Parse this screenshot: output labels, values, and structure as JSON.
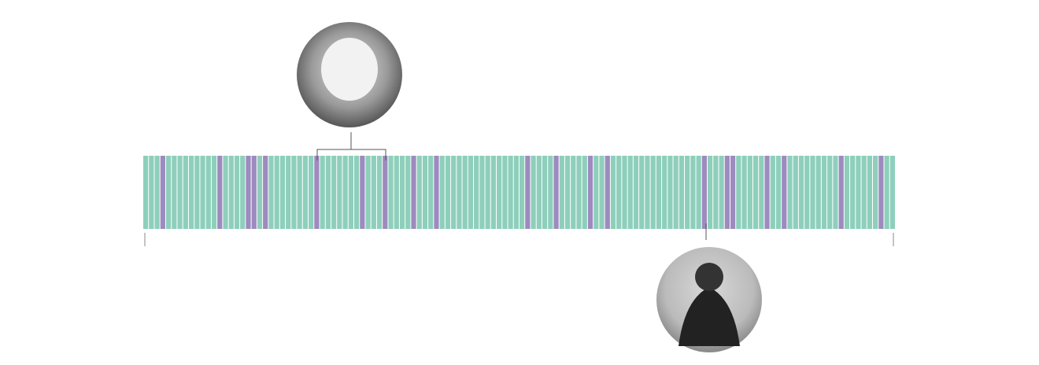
{
  "chart_data": {
    "type": "strip",
    "values": [
      0,
      0,
      0,
      1,
      0,
      0,
      0,
      0,
      0,
      0,
      0,
      0,
      0,
      1,
      0,
      0,
      0,
      0,
      1,
      1,
      0,
      1,
      0,
      0,
      0,
      0,
      0,
      0,
      0,
      0,
      1,
      0,
      0,
      0,
      0,
      0,
      0,
      0,
      1,
      0,
      0,
      0,
      1,
      0,
      0,
      0,
      0,
      1,
      0,
      0,
      0,
      1,
      0,
      0,
      0,
      0,
      0,
      0,
      0,
      0,
      0,
      0,
      0,
      0,
      0,
      0,
      0,
      1,
      0,
      0,
      0,
      0,
      1,
      0,
      0,
      0,
      0,
      0,
      1,
      0,
      0,
      1,
      0,
      0,
      0,
      0,
      0,
      0,
      0,
      0,
      0,
      0,
      0,
      0,
      0,
      0,
      0,
      0,
      1,
      0,
      0,
      0,
      1,
      1,
      0,
      0,
      0,
      0,
      0,
      1,
      0,
      0,
      1,
      0,
      0,
      0,
      0,
      0,
      0,
      0,
      0,
      0,
      1,
      0,
      0,
      0,
      0,
      0,
      0,
      1,
      0,
      0
    ],
    "colors": [
      "#8ecfbb",
      "#9d8bbf"
    ]
  }
}
